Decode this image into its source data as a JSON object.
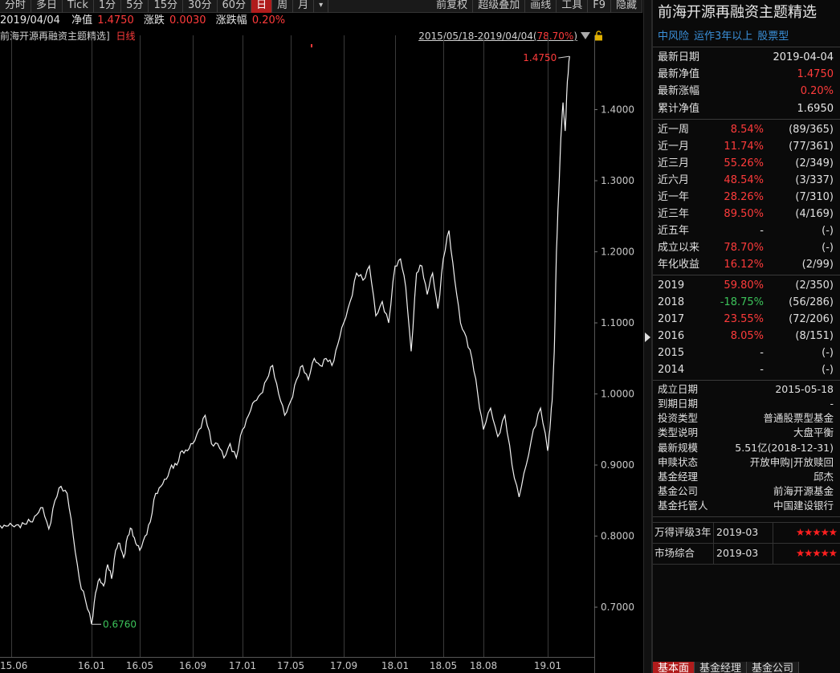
{
  "toolbar": {
    "left": [
      "分时",
      "多日",
      "Tick",
      "1分",
      "5分",
      "15分",
      "30分",
      "60分",
      "日",
      "周",
      "月"
    ],
    "active": "日",
    "more_icon": "caret-down-icon",
    "right": [
      "前复权",
      "超级叠加",
      "画线",
      "工具",
      "F9",
      "隐藏"
    ]
  },
  "infobar": {
    "date": "2019/04/04",
    "nav_label": "净值",
    "nav_value": "1.4750",
    "chg_label": "涨跌",
    "chg_value": "0.0030",
    "pct_label": "涨跌幅",
    "pct_value": "0.20%"
  },
  "chart_head": {
    "name": "前海开源再融资主题精选]",
    "period": "日线",
    "range": "2015/05/18-2019/04/04",
    "range_pct": "78.70%",
    "menu_icon": "triangle-down-icon",
    "lock_icon": "lock-icon"
  },
  "chart_data": {
    "type": "line",
    "title": "",
    "xlabel": "",
    "ylabel": "",
    "ylim": [
      0.63,
      1.5
    ],
    "yticks": [
      "1.4000",
      "1.3000",
      "1.2000",
      "1.1000",
      "1.0000",
      "0.9000",
      "0.8000",
      "0.7000"
    ],
    "ytick_values": [
      1.4,
      1.3,
      1.2,
      1.1,
      1.0,
      0.9,
      0.8,
      0.7
    ],
    "xticks": [
      "15.06",
      "16.01",
      "16.05",
      "16.09",
      "17.01",
      "17.05",
      "17.09",
      "18.01",
      "18.05",
      "18.08",
      "19.01"
    ],
    "max_label": "1.4750",
    "min_label": "0.6760",
    "grid": true,
    "series": [
      {
        "name": "",
        "points": [
          [
            "15.06",
            0.815
          ],
          [
            "15.06",
            0.814
          ],
          [
            "15.06",
            0.815
          ],
          [
            "15.06",
            0.816
          ],
          [
            "15.06",
            0.817
          ],
          [
            "15.06",
            0.82
          ],
          [
            "15.06",
            0.83
          ],
          [
            "15.06",
            0.84
          ],
          [
            "15.06",
            0.81
          ],
          [
            "15.06",
            0.85
          ],
          [
            "15.06",
            0.87
          ],
          [
            "15.06",
            0.86
          ],
          [
            "15.06",
            0.8
          ],
          [
            "15.06",
            0.74
          ],
          [
            "15.06",
            0.71
          ],
          [
            "16.01",
            0.676
          ],
          [
            "16.01",
            0.72
          ],
          [
            "16.01",
            0.74
          ],
          [
            "16.01",
            0.73
          ],
          [
            "16.01",
            0.76
          ],
          [
            "16.01",
            0.74
          ],
          [
            "16.01",
            0.78
          ],
          [
            "16.01",
            0.79
          ],
          [
            "16.01",
            0.77
          ],
          [
            "16.01",
            0.8
          ],
          [
            "16.01",
            0.81
          ],
          [
            "16.01",
            0.79
          ],
          [
            "16.05",
            0.78
          ],
          [
            "16.05",
            0.8
          ],
          [
            "16.05",
            0.82
          ],
          [
            "16.05",
            0.86
          ],
          [
            "16.05",
            0.87
          ],
          [
            "16.05",
            0.88
          ],
          [
            "16.05",
            0.9
          ],
          [
            "16.05",
            0.9
          ],
          [
            "16.05",
            0.92
          ],
          [
            "16.05",
            0.92
          ],
          [
            "16.09",
            0.93
          ],
          [
            "16.09",
            0.95
          ],
          [
            "16.09",
            0.97
          ],
          [
            "16.09",
            0.93
          ],
          [
            "16.09",
            0.93
          ],
          [
            "16.09",
            0.91
          ],
          [
            "16.09",
            0.93
          ],
          [
            "16.09",
            0.91
          ],
          [
            "17.01",
            0.95
          ],
          [
            "17.01",
            0.97
          ],
          [
            "17.01",
            0.99
          ],
          [
            "17.01",
            1.0
          ],
          [
            "17.01",
            1.02
          ],
          [
            "17.01",
            1.04
          ],
          [
            "17.01",
            1.0
          ],
          [
            "17.01",
            0.97
          ],
          [
            "17.05",
            0.99
          ],
          [
            "17.05",
            1.02
          ],
          [
            "17.05",
            1.04
          ],
          [
            "17.05",
            1.02
          ],
          [
            "17.05",
            1.05
          ],
          [
            "17.05",
            1.04
          ],
          [
            "17.05",
            1.05
          ],
          [
            "17.05",
            1.04
          ],
          [
            "17.05",
            1.07
          ],
          [
            "17.09",
            1.1
          ],
          [
            "17.09",
            1.13
          ],
          [
            "17.09",
            1.17
          ],
          [
            "17.09",
            1.16
          ],
          [
            "17.09",
            1.18
          ],
          [
            "17.09",
            1.11
          ],
          [
            "17.09",
            1.13
          ],
          [
            "17.09",
            1.1
          ],
          [
            "18.01",
            1.18
          ],
          [
            "18.01",
            1.19
          ],
          [
            "18.01",
            1.15
          ],
          [
            "18.01",
            1.06
          ],
          [
            "18.01",
            1.17
          ],
          [
            "18.01",
            1.18
          ],
          [
            "18.01",
            1.14
          ],
          [
            "18.01",
            1.17
          ],
          [
            "18.01",
            1.12
          ],
          [
            "18.05",
            1.19
          ],
          [
            "18.05",
            1.23
          ],
          [
            "18.05",
            1.16
          ],
          [
            "18.05",
            1.1
          ],
          [
            "18.05",
            1.08
          ],
          [
            "18.05",
            1.05
          ],
          [
            "18.05",
            1.0
          ],
          [
            "18.08",
            0.95
          ],
          [
            "18.08",
            0.98
          ],
          [
            "18.08",
            0.94
          ],
          [
            "18.08",
            0.97
          ],
          [
            "18.08",
            0.9
          ],
          [
            "18.08",
            0.855
          ],
          [
            "18.08",
            0.9
          ],
          [
            "18.08",
            0.95
          ],
          [
            "18.08",
            0.98
          ],
          [
            "19.01",
            0.92
          ],
          [
            "19.01",
            0.95
          ],
          [
            "19.01",
            0.99
          ],
          [
            "19.01",
            1.06
          ],
          [
            "19.01",
            1.2
          ],
          [
            "19.01",
            1.28
          ],
          [
            "19.01",
            1.36
          ],
          [
            "19.01",
            1.41
          ],
          [
            "19.01",
            1.37
          ],
          [
            "19.01",
            1.44
          ],
          [
            "19.01",
            1.475
          ]
        ]
      }
    ]
  },
  "panel": {
    "title": "前海开源再融资主题精选",
    "tags": [
      "中风险",
      "运作3年以上",
      "股票型"
    ],
    "summary": [
      {
        "k": "最新日期",
        "v": "2019-04-04",
        "color": "white"
      },
      {
        "k": "最新净值",
        "v": "1.4750",
        "color": "red"
      },
      {
        "k": "最新涨幅",
        "v": "0.20%",
        "color": "red"
      },
      {
        "k": "累计净值",
        "v": "1.6950",
        "color": "white"
      }
    ],
    "periods": [
      {
        "k": "近一周",
        "v": "8.54%",
        "r": "(89/365)",
        "color": "red"
      },
      {
        "k": "近一月",
        "v": "11.74%",
        "r": "(77/361)",
        "color": "red"
      },
      {
        "k": "近三月",
        "v": "55.26%",
        "r": "(2/349)",
        "color": "red"
      },
      {
        "k": "近六月",
        "v": "48.54%",
        "r": "(3/337)",
        "color": "red"
      },
      {
        "k": "近一年",
        "v": "28.26%",
        "r": "(7/310)",
        "color": "red"
      },
      {
        "k": "近三年",
        "v": "89.50%",
        "r": "(4/169)",
        "color": "red"
      },
      {
        "k": "近五年",
        "v": "-",
        "r": "(-)",
        "color": "white"
      },
      {
        "k": "成立以来",
        "v": "78.70%",
        "r": "(-)",
        "color": "red"
      },
      {
        "k": "年化收益",
        "v": "16.12%",
        "r": "(2/99)",
        "color": "red"
      }
    ],
    "years": [
      {
        "k": "2019",
        "v": "59.80%",
        "r": "(2/350)",
        "color": "red"
      },
      {
        "k": "2018",
        "v": "-18.75%",
        "r": "(56/286)",
        "color": "green"
      },
      {
        "k": "2017",
        "v": "23.55%",
        "r": "(72/206)",
        "color": "red"
      },
      {
        "k": "2016",
        "v": "8.05%",
        "r": "(8/151)",
        "color": "red"
      },
      {
        "k": "2015",
        "v": "-",
        "r": "(-)",
        "color": "white"
      },
      {
        "k": "2014",
        "v": "-",
        "r": "(-)",
        "color": "white"
      }
    ],
    "info": [
      {
        "k": "成立日期",
        "v": "2015-05-18"
      },
      {
        "k": "到期日期",
        "v": "-"
      },
      {
        "k": "投资类型",
        "v": "普通股票型基金"
      },
      {
        "k": "类型说明",
        "v": "大盘平衡"
      },
      {
        "k": "最新规模",
        "v": "5.51亿(2018-12-31)"
      },
      {
        "k": "申赎状态",
        "v": "开放申购|开放赎回"
      },
      {
        "k": "基金经理",
        "v": "邱杰"
      },
      {
        "k": "基金公司",
        "v": "前海开源基金"
      },
      {
        "k": "基金托管人",
        "v": "中国建设银行"
      }
    ],
    "ratings": [
      {
        "k": "万得评级3年",
        "date": "2019-03",
        "stars": "★★★★★"
      },
      {
        "k": "市场综合",
        "date": "2019-03",
        "stars": "★★★★★"
      }
    ],
    "tabs": [
      "基本面",
      "基金经理",
      "基金公司"
    ]
  }
}
